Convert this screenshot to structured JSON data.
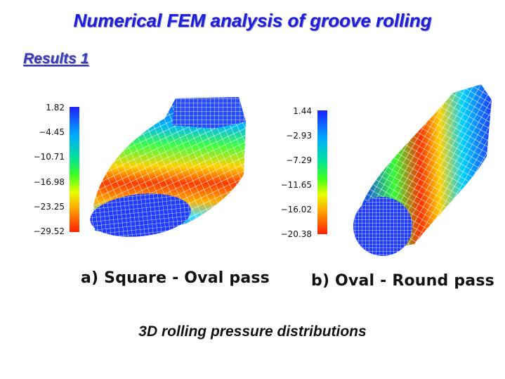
{
  "title": "Numerical FEM analysis of groove rolling",
  "subtitle": "Results 1",
  "left_panel": {
    "colorbar_ticks": [
      "1.82",
      "−4.45",
      "−10.71",
      "−16.98",
      "−23.25",
      "−29.52"
    ],
    "caption": "a) Square - Oval pass"
  },
  "right_panel": {
    "colorbar_ticks": [
      "1.44",
      "−2.93",
      "−7.29",
      "−11.65",
      "−16.02",
      "−20.38"
    ],
    "caption": "b) Oval - Round pass"
  },
  "bottom_caption": "3D rolling pressure distributions",
  "colors": {
    "title": "#1f1fd6",
    "subtitle": "#3a3ab8",
    "mesh_high": "#ff2000",
    "mesh_low": "#2020ff"
  }
}
